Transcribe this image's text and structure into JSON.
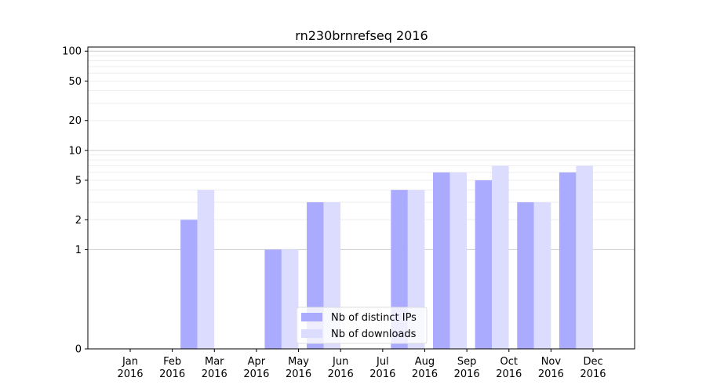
{
  "chart_data": {
    "type": "bar",
    "title": "rn230brnrefseq 2016",
    "xlabel": "",
    "ylabel": "",
    "y_scale": "symlog",
    "ylim": [
      0,
      110
    ],
    "y_ticks": [
      0,
      1,
      2,
      5,
      10,
      20,
      50,
      100
    ],
    "y_tick_labels": [
      "0",
      "1",
      "2",
      "5",
      "10",
      "20",
      "50",
      "100"
    ],
    "categories": [
      "Jan\n2016",
      "Feb\n2016",
      "Mar\n2016",
      "Apr\n2016",
      "May\n2016",
      "Jun\n2016",
      "Jul\n2016",
      "Aug\n2016",
      "Sep\n2016",
      "Oct\n2016",
      "Nov\n2016",
      "Dec\n2016"
    ],
    "series": [
      {
        "name": "Nb of distinct IPs",
        "color": "#aaaaff",
        "values": [
          0,
          2,
          0,
          1,
          3,
          0,
          4,
          6,
          5,
          3,
          6,
          0
        ]
      },
      {
        "name": "Nb of downloads",
        "color": "#dcdcff",
        "values": [
          0,
          4,
          0,
          1,
          3,
          0,
          4,
          6,
          7,
          3,
          7,
          0
        ]
      }
    ],
    "legend_position": "bottom-center",
    "grid": "horizontal"
  }
}
